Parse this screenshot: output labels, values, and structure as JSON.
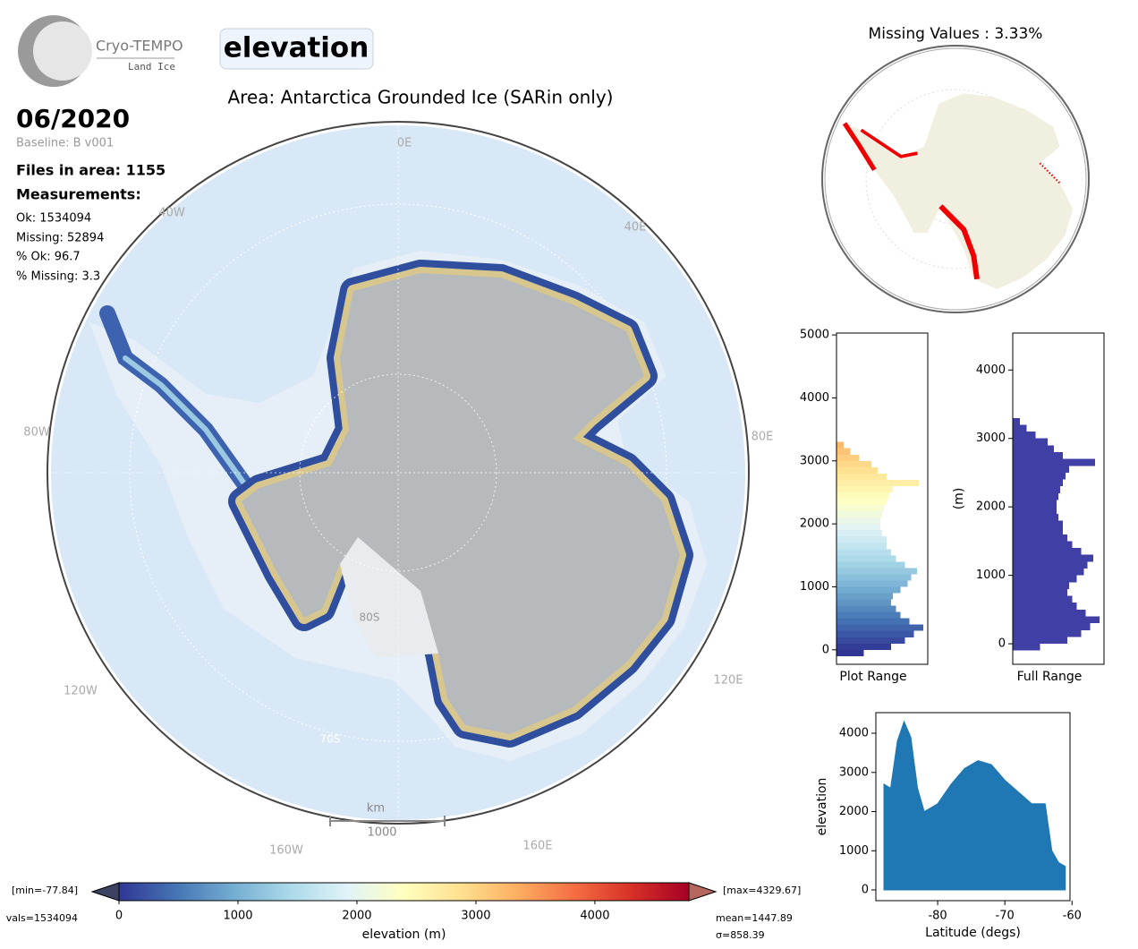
{
  "header": {
    "logo_title": "Cryo-TEMPO",
    "logo_subtitle": "Land Ice",
    "parameter": "elevation",
    "area": "Area: Antarctica Grounded Ice (SARin only)",
    "date": "06/2020",
    "baseline": "Baseline: B v001",
    "files": "Files in area: 1155",
    "measurements_title": "Measurements:",
    "stats": [
      "Ok: 1534094",
      "Missing: 52894",
      "% Ok: 96.7",
      "% Missing: 3.3"
    ]
  },
  "map": {
    "lon_labels": [
      "0E",
      "40E",
      "80E",
      "120E",
      "160E",
      "160W",
      "120W",
      "80W",
      "40W"
    ],
    "lat_labels": [
      "80S",
      "70S"
    ],
    "scale_unit": "km",
    "scale_value": "1000"
  },
  "chart_data": [
    {
      "type": "map",
      "title": "Missing Values : 3.33%"
    },
    {
      "type": "histogram",
      "orientation": "horizontal",
      "xlabel": "Plot Range",
      "colormap": true,
      "bins": [
        -100,
        0,
        100,
        200,
        300,
        400,
        500,
        600,
        700,
        800,
        900,
        1000,
        1100,
        1200,
        1300,
        1400,
        1500,
        1600,
        1700,
        1800,
        1900,
        2000,
        2100,
        2200,
        2300,
        2400,
        2500,
        2600,
        2700,
        2800,
        2900,
        3000,
        3100,
        3200,
        3300
      ],
      "counts": [
        30,
        60,
        75,
        85,
        95,
        80,
        70,
        65,
        60,
        62,
        70,
        78,
        82,
        88,
        75,
        65,
        60,
        55,
        55,
        50,
        48,
        48,
        50,
        52,
        55,
        58,
        62,
        90,
        55,
        45,
        38,
        25,
        15,
        8
      ],
      "ylim": [
        -230,
        5030
      ],
      "yticks": [
        0,
        1000,
        2000,
        3000,
        4000,
        5000
      ]
    },
    {
      "type": "histogram",
      "orientation": "horizontal",
      "xlabel": "Full Range",
      "ylabel": "(m)",
      "color": "#3f3fa6",
      "bins": [
        -100,
        0,
        100,
        200,
        300,
        400,
        500,
        600,
        700,
        800,
        900,
        1000,
        1100,
        1200,
        1300,
        1400,
        1500,
        1600,
        1700,
        1800,
        1900,
        2000,
        2100,
        2200,
        2300,
        2400,
        2500,
        2600,
        2700,
        2800,
        2900,
        3000,
        3100,
        3200,
        3300
      ],
      "counts": [
        30,
        60,
        75,
        85,
        95,
        80,
        70,
        65,
        60,
        62,
        70,
        78,
        82,
        88,
        75,
        65,
        60,
        55,
        55,
        50,
        48,
        48,
        50,
        52,
        55,
        58,
        62,
        90,
        55,
        45,
        38,
        25,
        15,
        8
      ],
      "ylim": [
        -300,
        4540
      ],
      "yticks": [
        0,
        1000,
        2000,
        3000,
        4000
      ]
    },
    {
      "type": "area",
      "color": "#1f77b4",
      "xlabel": "Latitude (degs)",
      "ylabel": "elevation",
      "x": [
        -88,
        -87,
        -86,
        -85,
        -84,
        -83,
        -82,
        -80,
        -78,
        -76,
        -74,
        -72,
        -70,
        -68,
        -66,
        -64,
        -63,
        -62,
        -61
      ],
      "values": [
        2700,
        2600,
        3800,
        4300,
        3900,
        2600,
        2000,
        2200,
        2700,
        3100,
        3300,
        3200,
        2800,
        2500,
        2200,
        2200,
        1000,
        700,
        600
      ],
      "xlim": [
        -89.2,
        -60.3
      ],
      "ylim": [
        -274,
        4526
      ],
      "xticks": [
        -80,
        -70,
        -60
      ],
      "yticks": [
        0,
        1000,
        2000,
        3000,
        4000
      ]
    },
    {
      "type": "colorbar",
      "xlabel": "elevation (m)",
      "xlim": [
        0,
        4790
      ],
      "xticks": [
        0,
        1000,
        2000,
        3000,
        4000
      ],
      "colors": [
        "#313695",
        "#4575b4",
        "#74add1",
        "#abd9e9",
        "#e0f3f8",
        "#ffffbf",
        "#fee090",
        "#fdae61",
        "#f46d43",
        "#d73027",
        "#a50026"
      ],
      "under_color": "#3b4262",
      "over_color": "#b5675e",
      "annotations": [
        "[min=-77.84]",
        "vals=1534094",
        "[max=4329.67]",
        "mean=1447.89",
        "σ=858.39"
      ]
    }
  ]
}
